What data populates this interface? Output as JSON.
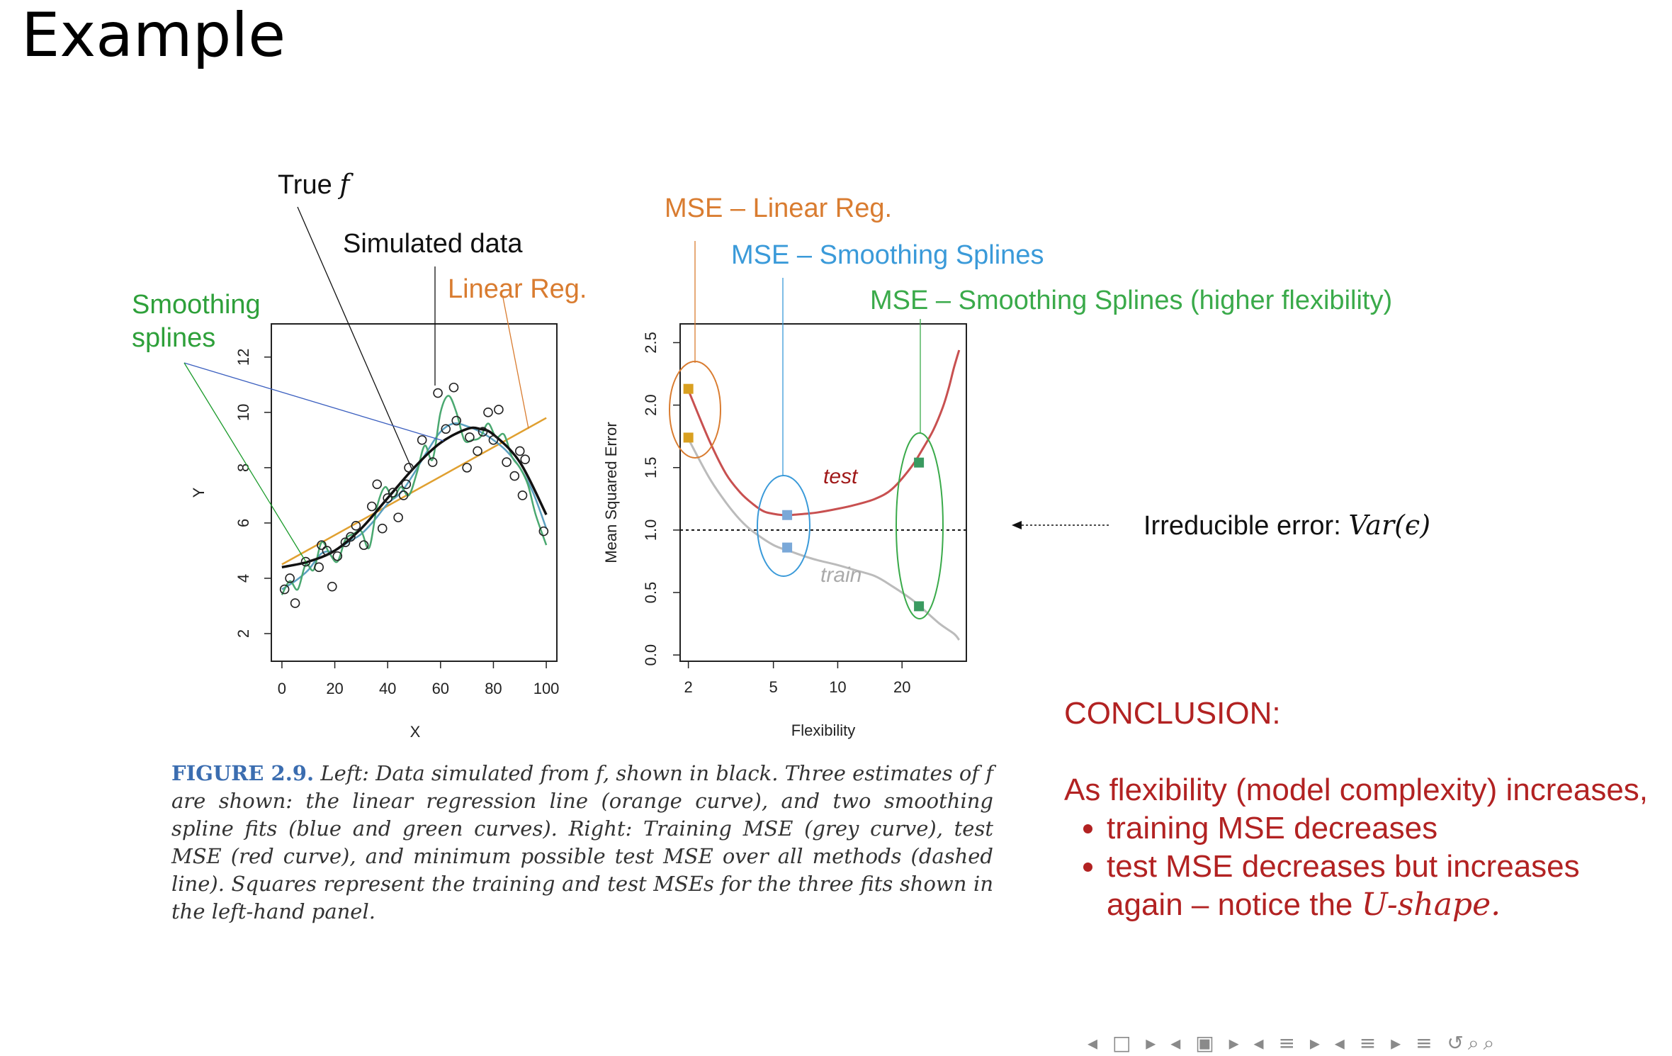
{
  "slide": {
    "title": "Example",
    "caption_label": "FIGURE 2.9.",
    "caption_text": " Left: Data simulated from f, shown in black. Three estimates of f are shown: the linear regression line (orange curve), and two smoothing spline fits (blue and green curves). Right: Training MSE (grey curve), test MSE (red curve), and minimum possible test MSE over all methods (dashed line). Squares represent the training and test MSEs for the three fits shown in the left-hand panel.",
    "conclusion": {
      "heading": "CONCLUSION:",
      "line1": "As flexibility (model complexity) increases,",
      "bullet1": "training MSE decreases",
      "bullet2_prefix": "test MSE decreases but increases again – notice the ",
      "bullet2_em": "U-shape."
    },
    "nav_glyphs": "◂ □ ▸ ◂ ▣ ▸ ◂ ≡ ▸ ◂ ≡ ▸   ≡   ↺⌕⌕"
  },
  "annotations": {
    "true_f_prefix": "True ",
    "true_f_var": "f",
    "simulated_data": "Simulated data",
    "linear_reg": "Linear Reg.",
    "smoothing_line1": "Smoothing",
    "smoothing_line2": "splines",
    "mse_linear": "MSE – Linear Reg.",
    "mse_spline": "MSE – Smoothing Splines",
    "mse_spline_high": "MSE – Smoothing Splines (higher flexibility)",
    "irreducible_prefix": "Irreducible error: ",
    "irreducible_var": "Var(ϵ)"
  },
  "colors": {
    "black": "#111111",
    "orange": "#e0a030",
    "blue": "#5aa0c0",
    "green": "#4aa870",
    "red": "#c85050",
    "grey": "#bbbbbb",
    "label_orange": "#d97c30",
    "label_blue": "#3a9ad9",
    "label_green": "#3aaa4a",
    "dark_red": "#a01818"
  },
  "chart_data": [
    {
      "type": "scatter",
      "title": "",
      "xlabel": "X",
      "ylabel": "Y",
      "xlim": [
        -4,
        104
      ],
      "ylim": [
        1,
        13.2
      ],
      "xticks": [
        0,
        20,
        40,
        60,
        80,
        100
      ],
      "yticks": [
        2,
        4,
        6,
        8,
        10,
        12
      ],
      "points": {
        "x": [
          1,
          3,
          5,
          9,
          14,
          15,
          17,
          19,
          21,
          24,
          26,
          28,
          31,
          34,
          36,
          38,
          40,
          42,
          44,
          46,
          47,
          48,
          53,
          57,
          59,
          62,
          65,
          66,
          70,
          71,
          74,
          76,
          78,
          80,
          82,
          85,
          88,
          90,
          91,
          92,
          99
        ],
        "y": [
          3.6,
          4.0,
          3.1,
          4.6,
          4.4,
          5.2,
          5.0,
          3.7,
          4.8,
          5.3,
          5.5,
          5.9,
          5.2,
          6.6,
          7.4,
          5.8,
          6.9,
          7.1,
          6.2,
          7.0,
          7.4,
          8.0,
          9.0,
          8.2,
          10.7,
          9.4,
          10.9,
          9.7,
          8.0,
          9.1,
          8.6,
          9.3,
          10.0,
          9.0,
          10.1,
          8.2,
          7.7,
          8.6,
          7.0,
          8.3,
          5.7
        ]
      },
      "series": [
        {
          "name": "True f",
          "kind": "smooth",
          "x": [
            0,
            10,
            20,
            30,
            40,
            50,
            60,
            70,
            75,
            80,
            90,
            100
          ],
          "y": [
            4.4,
            4.6,
            5.0,
            5.8,
            6.9,
            8.0,
            8.9,
            9.4,
            9.4,
            9.2,
            8.2,
            6.3
          ]
        },
        {
          "name": "Linear Reg.",
          "kind": "line",
          "x": [
            0,
            100
          ],
          "y": [
            4.5,
            9.8
          ]
        },
        {
          "name": "Smoothing splines (blue)",
          "kind": "smooth",
          "x": [
            0,
            5,
            10,
            15,
            20,
            25,
            30,
            35,
            40,
            45,
            50,
            55,
            60,
            65,
            70,
            75,
            80,
            85,
            90,
            95,
            100
          ],
          "y": [
            3.6,
            3.9,
            4.3,
            4.9,
            5.0,
            5.3,
            5.6,
            6.1,
            6.7,
            7.1,
            7.8,
            8.6,
            9.3,
            9.6,
            9.5,
            9.3,
            9.0,
            8.6,
            8.0,
            7.1,
            5.8
          ]
        },
        {
          "name": "Smoothing splines (green)",
          "kind": "smooth",
          "x": [
            0,
            3,
            6,
            9,
            12,
            15,
            18,
            21,
            24,
            27,
            30,
            33,
            36,
            39,
            42,
            45,
            48,
            51,
            54,
            57,
            60,
            63,
            66,
            69,
            72,
            75,
            78,
            81,
            84,
            87,
            90,
            93,
            96,
            100
          ],
          "y": [
            3.4,
            3.9,
            3.6,
            4.5,
            4.3,
            5.3,
            4.9,
            4.6,
            5.4,
            5.6,
            5.7,
            5.1,
            6.6,
            7.3,
            6.9,
            7.3,
            7.0,
            7.8,
            8.8,
            8.3,
            10.0,
            10.6,
            10.0,
            9.0,
            9.0,
            9.1,
            9.6,
            9.1,
            9.2,
            8.4,
            8.0,
            7.4,
            6.3,
            5.2
          ]
        }
      ]
    },
    {
      "type": "line",
      "title": "",
      "xlabel": "Flexibility",
      "ylabel": "Mean Squared Error",
      "xscale": "log",
      "xlim": [
        1.83,
        40
      ],
      "ylim": [
        -0.05,
        2.65
      ],
      "xticks": [
        2,
        5,
        10,
        20
      ],
      "yticks": [
        0.0,
        0.5,
        1.0,
        1.5,
        2.0,
        2.5
      ],
      "ytick_labels": [
        "0.0",
        "0.5",
        "1.0",
        "1.5",
        "2.0",
        "2.5"
      ],
      "reference_line": {
        "y": 1.0,
        "style": "dashed"
      },
      "series": [
        {
          "name": "test",
          "color": "red",
          "x": [
            2,
            2.5,
            3,
            3.5,
            4,
            4.5,
            5,
            5.5,
            6,
            7,
            8,
            10,
            12,
            15,
            18,
            22,
            25,
            28,
            31,
            33,
            35,
            37
          ],
          "y": [
            2.12,
            1.72,
            1.45,
            1.3,
            1.21,
            1.15,
            1.13,
            1.12,
            1.12,
            1.13,
            1.14,
            1.17,
            1.2,
            1.25,
            1.33,
            1.5,
            1.65,
            1.8,
            1.98,
            2.13,
            2.3,
            2.44
          ]
        },
        {
          "name": "train",
          "color": "grey",
          "x": [
            2,
            2.5,
            3,
            3.5,
            4,
            5,
            6,
            7,
            8,
            10,
            12,
            15,
            18,
            22,
            25,
            30,
            35,
            37
          ],
          "y": [
            1.73,
            1.42,
            1.22,
            1.08,
            0.99,
            0.88,
            0.83,
            0.79,
            0.76,
            0.72,
            0.68,
            0.63,
            0.55,
            0.45,
            0.37,
            0.25,
            0.17,
            0.12
          ]
        }
      ],
      "squares": [
        {
          "x": 2,
          "y": 2.13,
          "color": "orange"
        },
        {
          "x": 2,
          "y": 1.74,
          "color": "orange"
        },
        {
          "x": 5.8,
          "y": 1.12,
          "color": "blue"
        },
        {
          "x": 5.8,
          "y": 0.86,
          "color": "blue"
        },
        {
          "x": 24,
          "y": 1.54,
          "color": "green"
        },
        {
          "x": 24,
          "y": 0.39,
          "color": "green"
        }
      ]
    }
  ]
}
